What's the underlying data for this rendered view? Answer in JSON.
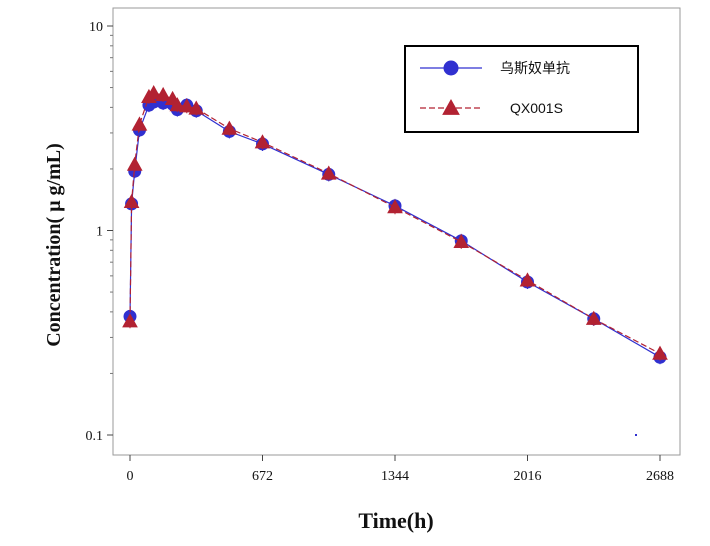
{
  "chart_data": {
    "type": "line",
    "xlabel": "Time(h)",
    "ylabel": "Concentration( μ g/mL)",
    "xlim": [
      -30,
      2740
    ],
    "ylim": [
      0.08,
      12
    ],
    "yscale": "log",
    "grid": false,
    "legend_position": "top-right",
    "x_ticks": [
      0,
      672,
      1344,
      2016,
      2688
    ],
    "x_tick_labels": [
      "0",
      "672",
      "1344",
      "2016",
      "2688"
    ],
    "y_ticks": [
      0.1,
      1,
      10
    ],
    "y_tick_labels": [
      "0.1",
      "1",
      "10"
    ],
    "series": [
      {
        "name": "乌斯奴单抗",
        "color": "#3030d0",
        "marker": "circle",
        "line_style": "solid",
        "x": [
          0,
          8,
          24,
          48,
          96,
          120,
          168,
          216,
          240,
          288,
          336,
          504,
          672,
          1008,
          1344,
          1680,
          2016,
          2352,
          2688
        ],
        "y": [
          0.38,
          1.35,
          1.95,
          3.1,
          4.1,
          4.25,
          4.2,
          4.15,
          3.9,
          4.1,
          3.85,
          3.05,
          2.65,
          1.88,
          1.32,
          0.89,
          0.56,
          0.37,
          0.24
        ]
      },
      {
        "name": "QX001S",
        "color": "#b22232",
        "marker": "triangle",
        "line_style": "dashed",
        "x": [
          0,
          8,
          24,
          48,
          96,
          120,
          168,
          216,
          240,
          288,
          336,
          504,
          672,
          1008,
          1344,
          1680,
          2016,
          2352,
          2688
        ],
        "y": [
          0.36,
          1.38,
          2.1,
          3.3,
          4.5,
          4.7,
          4.6,
          4.4,
          4.1,
          4.05,
          3.95,
          3.15,
          2.7,
          1.9,
          1.3,
          0.88,
          0.57,
          0.37,
          0.25
        ]
      }
    ]
  }
}
